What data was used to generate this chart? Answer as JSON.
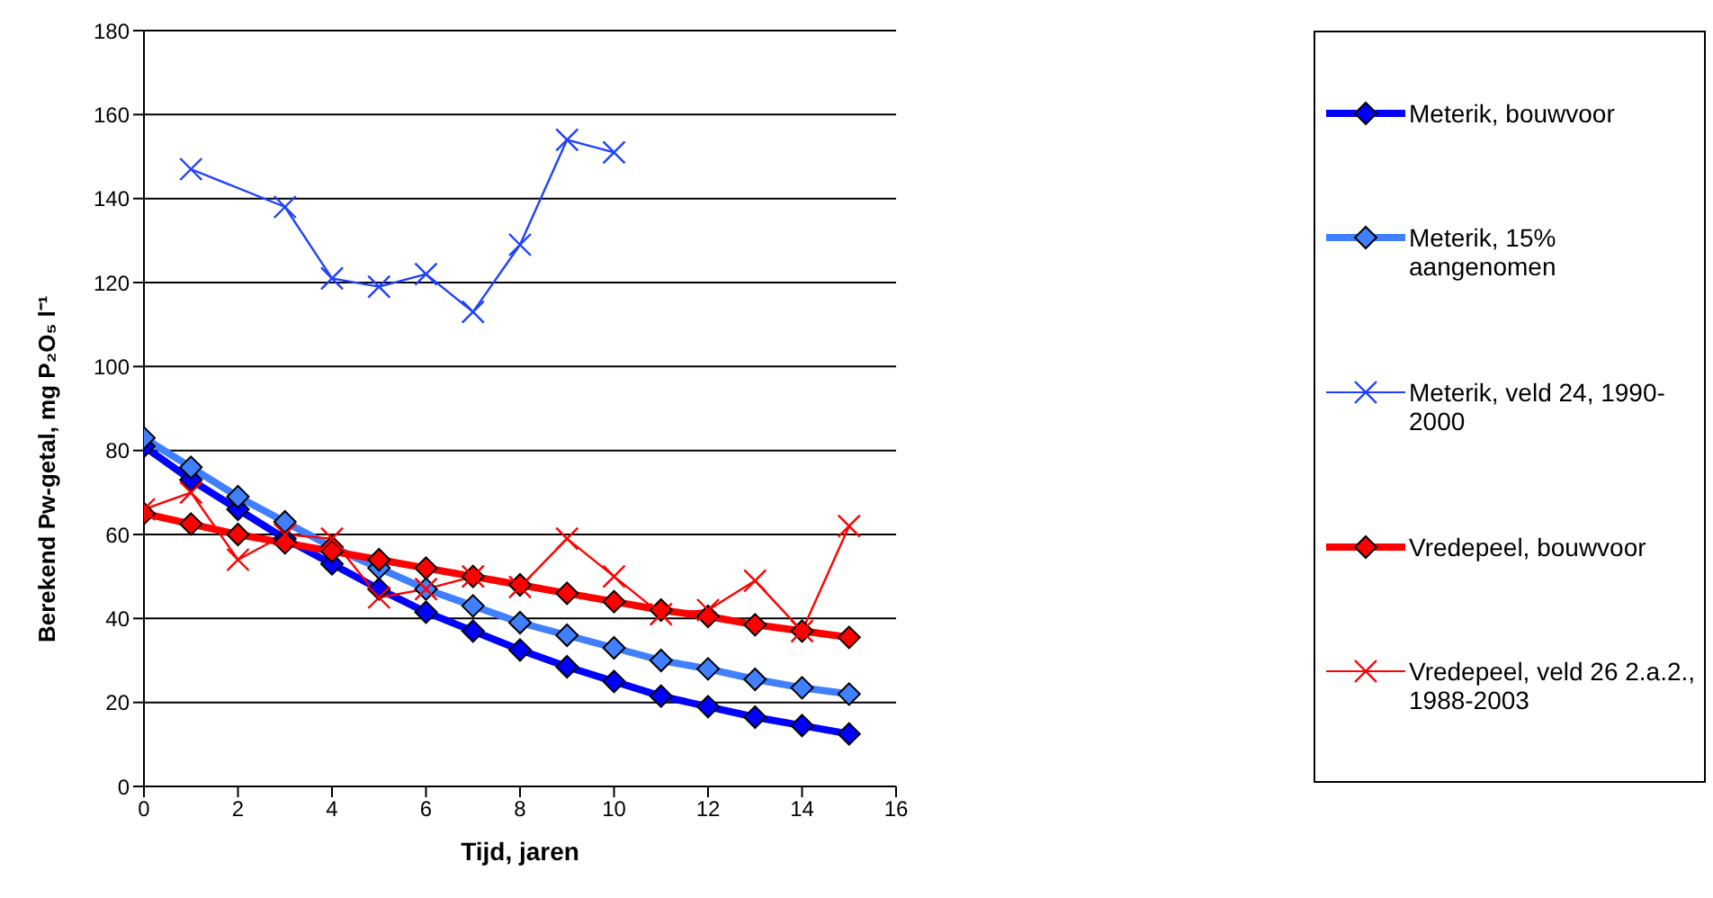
{
  "chart_data": {
    "type": "line",
    "xlabel": "Tijd, jaren",
    "ylabel": "Berekend Pw-getal, mg P₂O₅ l⁻¹",
    "xlim": [
      0,
      16
    ],
    "xticks": [
      0,
      2,
      4,
      6,
      8,
      10,
      12,
      14,
      16
    ],
    "ylim": [
      0,
      180
    ],
    "yticks": [
      0,
      20,
      40,
      60,
      80,
      100,
      120,
      140,
      160,
      180
    ],
    "grid": "y",
    "legend": "right",
    "series": [
      {
        "name": "Meterik, bouwvoor",
        "color": "#0000ff",
        "marker": "diamond",
        "x": [
          0,
          1,
          2,
          3,
          4,
          5,
          6,
          7,
          8,
          9,
          10,
          11,
          12,
          13,
          14,
          15
        ],
        "values": [
          81,
          73,
          66,
          59,
          53,
          47,
          41.5,
          37,
          32.5,
          28.5,
          25,
          21.5,
          19,
          16.5,
          14.5,
          12.5
        ]
      },
      {
        "name": "Meterik, 15% aangenomen",
        "color": "#4080ff",
        "marker": "diamond",
        "x": [
          0,
          1,
          2,
          3,
          4,
          5,
          6,
          7,
          8,
          9,
          10,
          11,
          12,
          13,
          14,
          15
        ],
        "values": [
          83,
          76,
          69,
          63,
          57,
          52,
          47,
          43,
          39,
          36,
          33,
          30,
          28,
          25.5,
          23.5,
          22
        ]
      },
      {
        "name": "Meterik, veld 24, 1990-2000",
        "color": "#2040ff",
        "marker": "cross",
        "x": [
          1,
          3,
          4,
          5,
          6,
          7,
          8,
          9,
          10
        ],
        "values": [
          147,
          138,
          121,
          119,
          122,
          113,
          129,
          154,
          151
        ]
      },
      {
        "name": "Vredepeel, bouwvoor",
        "color": "#ff0000",
        "marker": "diamond",
        "x": [
          0,
          1,
          2,
          3,
          4,
          5,
          6,
          7,
          8,
          9,
          10,
          11,
          12,
          13,
          14,
          15
        ],
        "values": [
          65,
          62.5,
          60,
          58,
          56,
          54,
          52,
          50,
          48,
          46,
          44,
          42,
          40.5,
          38.5,
          37,
          35.5
        ]
      },
      {
        "name": "Vredepeel, veld 26 2.a.2., 1988-2003",
        "color": "#ff0000",
        "marker": "cross",
        "x": [
          0,
          1,
          2,
          3,
          4,
          5,
          6,
          7,
          8,
          9,
          10,
          11,
          12,
          13,
          14,
          15
        ],
        "values": [
          66,
          70,
          54,
          60,
          59,
          45,
          47,
          50,
          47.5,
          59,
          50,
          41,
          42,
          49,
          37,
          62
        ]
      }
    ]
  }
}
